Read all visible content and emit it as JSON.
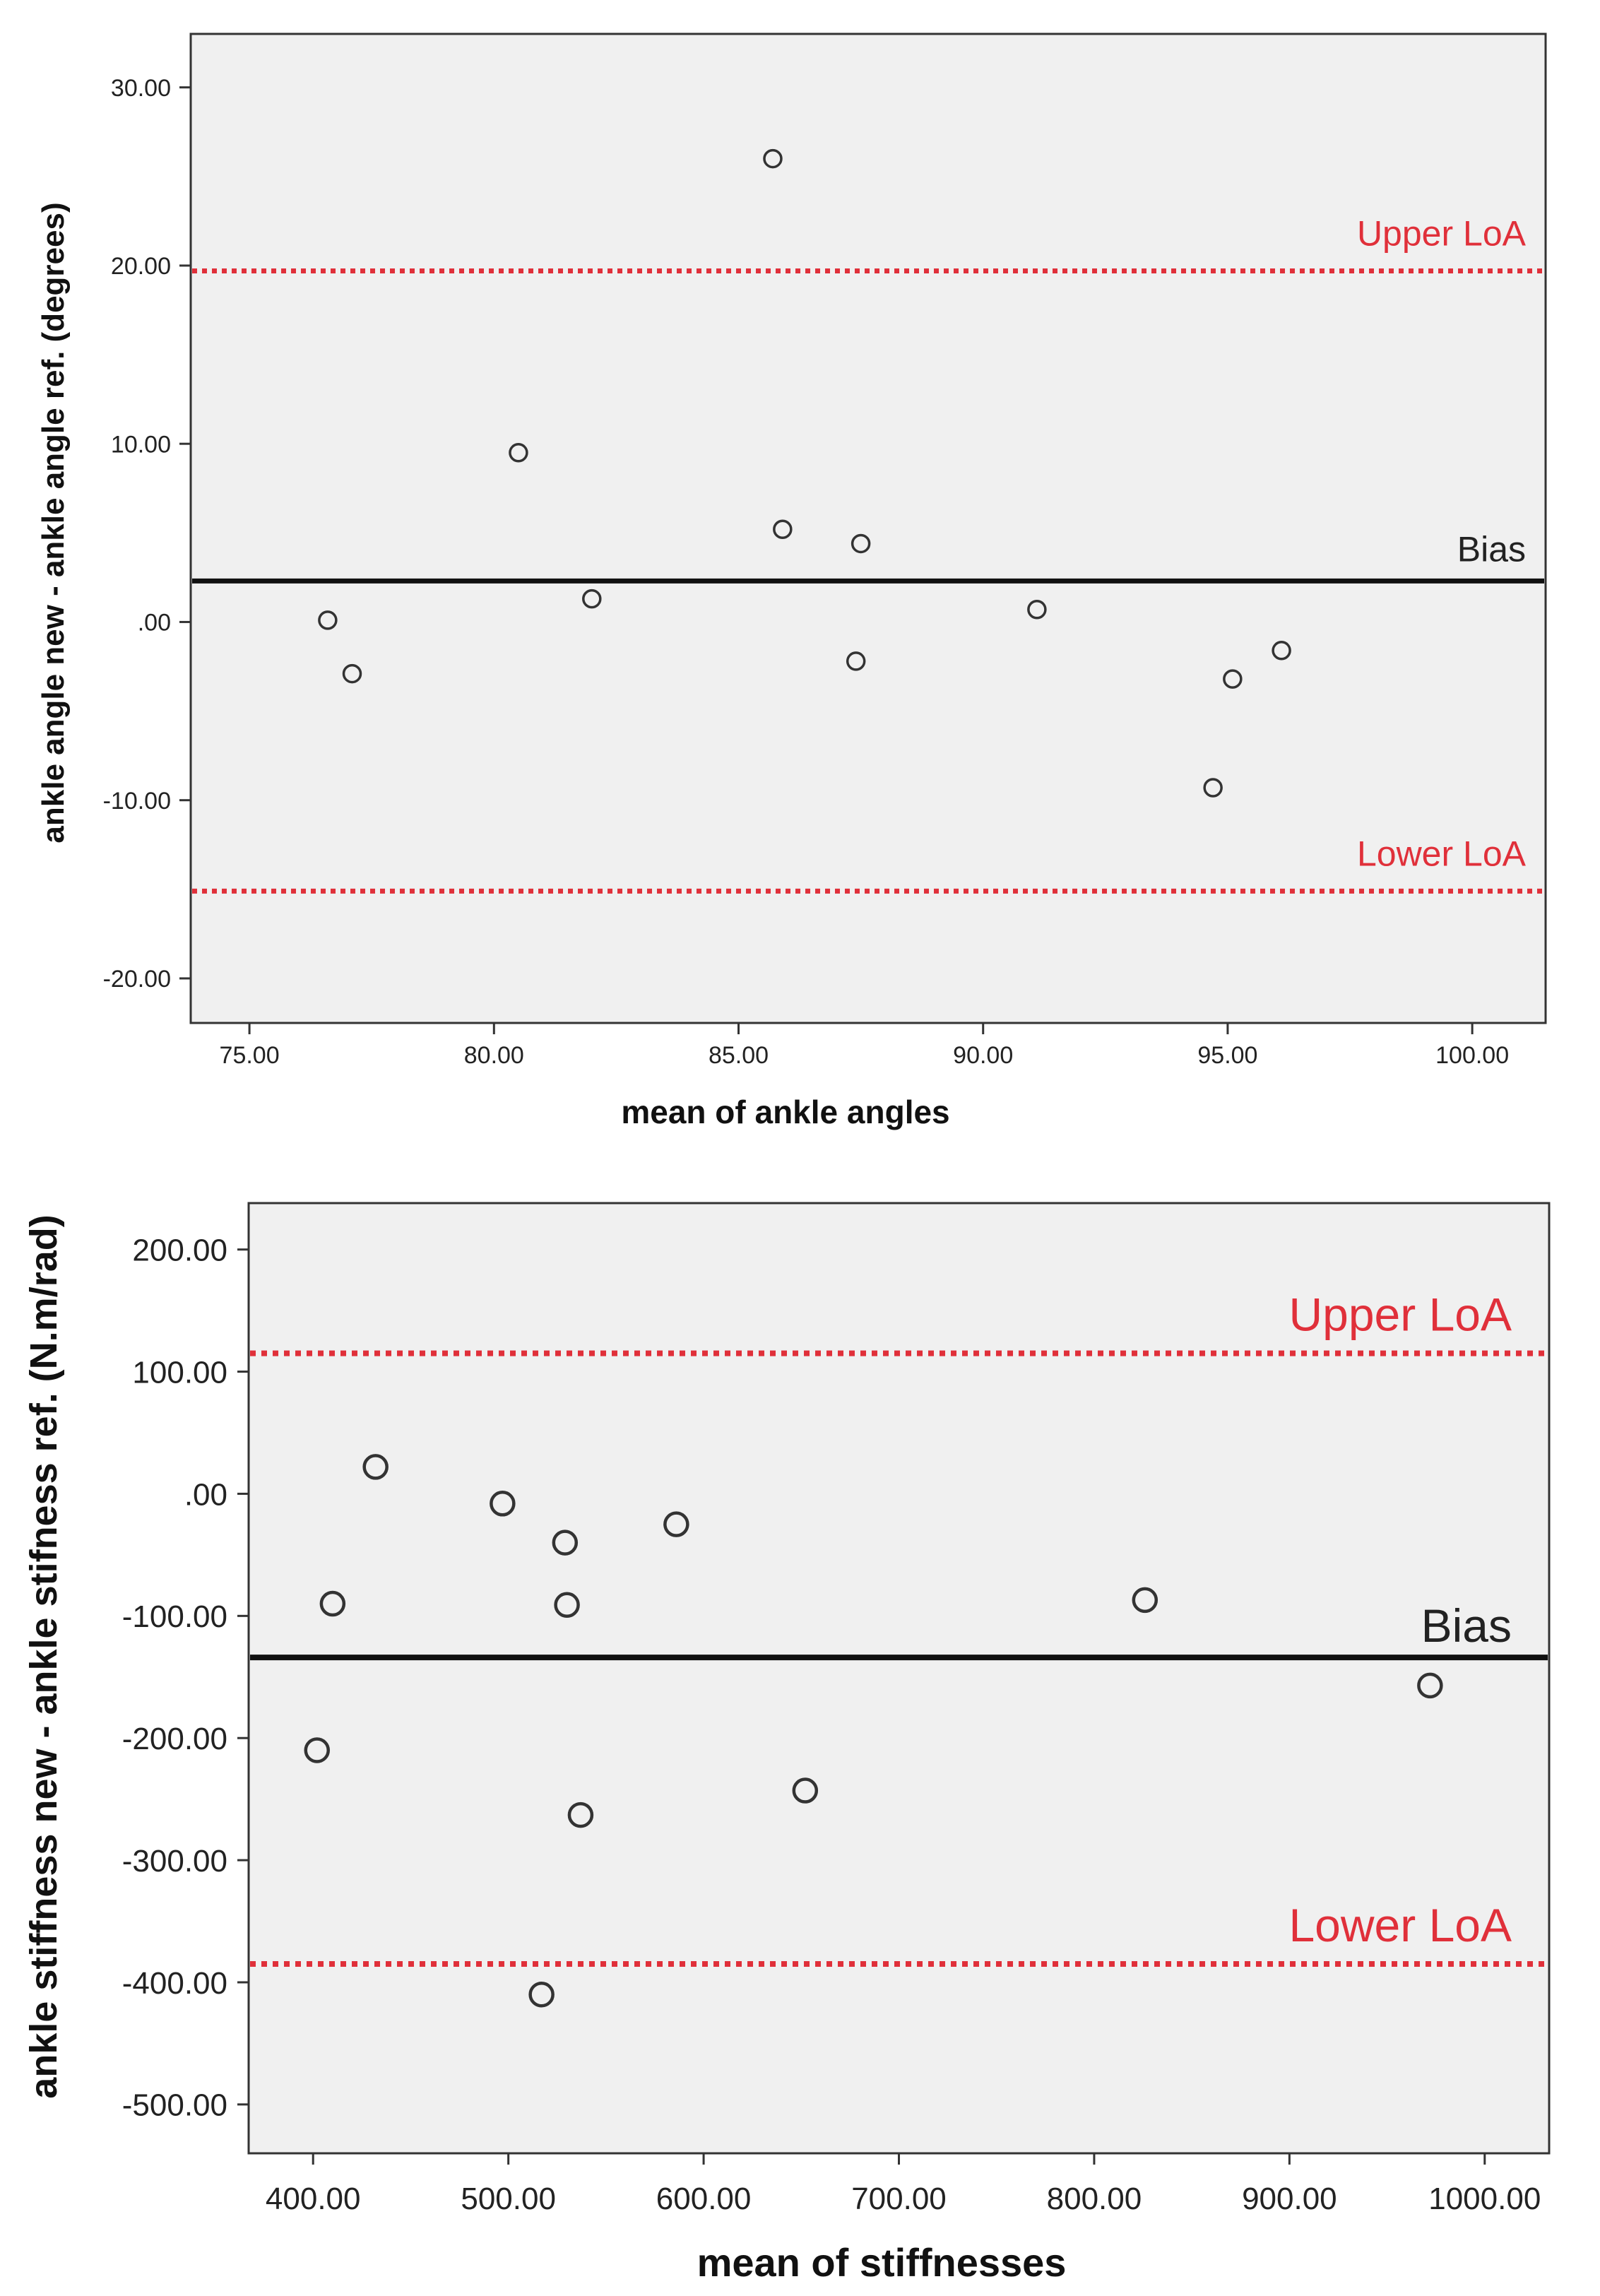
{
  "chart_data": [
    {
      "type": "scatter",
      "title": "",
      "xlabel": "mean of ankle angles",
      "ylabel": "ankle angle new - ankle angle ref. (degrees)",
      "xlim": [
        73.8,
        101.5
      ],
      "ylim": [
        -22.5,
        33.0
      ],
      "x_ticks": [
        75,
        80,
        85,
        90,
        95,
        100
      ],
      "x_tick_labels": [
        "75.00",
        "80.00",
        "85.00",
        "90.00",
        "95.00",
        "100.00"
      ],
      "y_ticks": [
        30,
        20,
        10,
        0,
        -10,
        -20
      ],
      "y_tick_labels": [
        "30.00",
        "20.00",
        "10.00",
        ".00",
        "-10.00",
        "-20.00"
      ],
      "points": [
        {
          "x": 85.7,
          "y": 26.0
        },
        {
          "x": 80.5,
          "y": 9.5
        },
        {
          "x": 85.9,
          "y": 5.2
        },
        {
          "x": 87.5,
          "y": 4.4
        },
        {
          "x": 82.0,
          "y": 1.3
        },
        {
          "x": 76.6,
          "y": 0.1
        },
        {
          "x": 91.1,
          "y": 0.7
        },
        {
          "x": 77.1,
          "y": -2.9
        },
        {
          "x": 87.4,
          "y": -2.2
        },
        {
          "x": 96.1,
          "y": -1.6
        },
        {
          "x": 95.1,
          "y": -3.2
        },
        {
          "x": 94.7,
          "y": -9.3
        }
      ],
      "reference_lines": [
        {
          "name": "Upper LoA",
          "value": 19.7,
          "style": "dotted",
          "color": "#e0303a"
        },
        {
          "name": "Bias",
          "value": 2.3,
          "style": "solid",
          "color": "#111111"
        },
        {
          "name": "Lower LoA",
          "value": -15.1,
          "style": "dotted",
          "color": "#e0303a"
        }
      ]
    },
    {
      "type": "scatter",
      "title": "",
      "xlabel": "mean of stiffnesses",
      "ylabel": "ankle stiffness new - ankle stifness ref. (N.m/rad)",
      "xlim": [
        367,
        1033
      ],
      "ylim": [
        -540,
        238
      ],
      "x_ticks": [
        400,
        500,
        600,
        700,
        800,
        900,
        1000
      ],
      "x_tick_labels": [
        "400.00",
        "500.00",
        "600.00",
        "700.00",
        "800.00",
        "900.00",
        "1000.00"
      ],
      "y_ticks": [
        200,
        100,
        0,
        -100,
        -200,
        -300,
        -400,
        -500
      ],
      "y_tick_labels": [
        "200.00",
        "100.00",
        ".00",
        "-100.00",
        "-200.00",
        "-300.00",
        "-400.00",
        "-500.00"
      ],
      "points": [
        {
          "x": 432,
          "y": 22
        },
        {
          "x": 497,
          "y": -8
        },
        {
          "x": 529,
          "y": -40
        },
        {
          "x": 586,
          "y": -25
        },
        {
          "x": 410,
          "y": -90
        },
        {
          "x": 530,
          "y": -91
        },
        {
          "x": 826,
          "y": -87
        },
        {
          "x": 972,
          "y": -157
        },
        {
          "x": 402,
          "y": -210
        },
        {
          "x": 537,
          "y": -263
        },
        {
          "x": 652,
          "y": -243
        },
        {
          "x": 517,
          "y": -410
        }
      ],
      "reference_lines": [
        {
          "name": "Upper LoA",
          "value": 115,
          "style": "dotted",
          "color": "#e0303a"
        },
        {
          "name": "Bias",
          "value": -134,
          "style": "solid",
          "color": "#111111"
        },
        {
          "name": "Lower LoA",
          "value": -385,
          "style": "dotted",
          "color": "#e0303a"
        }
      ]
    }
  ]
}
